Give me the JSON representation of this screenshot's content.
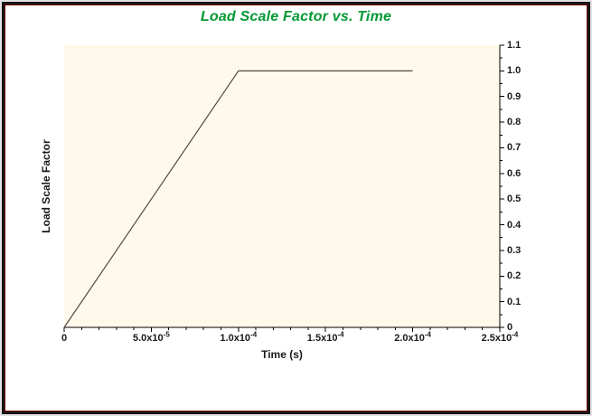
{
  "chart_data": {
    "type": "line",
    "title": "Load Scale Factor vs. Time",
    "xlabel": "Time (s)",
    "ylabel": "Load Scale Factor",
    "xlim": [
      0,
      0.00025
    ],
    "ylim": [
      0,
      1.1
    ],
    "grid": false,
    "legend": "none",
    "axis_sides": {
      "x": "bottom",
      "y": "right"
    },
    "series": [
      {
        "name": "Load Scale Factor",
        "points": [
          [
            0,
            0
          ],
          [
            0.0001,
            1.0
          ],
          [
            0.0002,
            1.0
          ]
        ]
      }
    ],
    "x_major_ticks": [
      {
        "value": 0,
        "label": "0",
        "exp": ""
      },
      {
        "value": 5e-05,
        "label": "5.0x10",
        "exp": "-5"
      },
      {
        "value": 0.0001,
        "label": "1.0x10",
        "exp": "-4"
      },
      {
        "value": 0.00015,
        "label": "1.5x10",
        "exp": "-4"
      },
      {
        "value": 0.0002,
        "label": "2.0x10",
        "exp": "-4"
      },
      {
        "value": 0.00025,
        "label": "2.5x10",
        "exp": "-4"
      }
    ],
    "x_minor_step": 1e-05,
    "y_major_ticks": [
      {
        "value": 0,
        "label": "0"
      },
      {
        "value": 0.1,
        "label": "0.1"
      },
      {
        "value": 0.2,
        "label": "0.2"
      },
      {
        "value": 0.3,
        "label": "0.3"
      },
      {
        "value": 0.4,
        "label": "0.4"
      },
      {
        "value": 0.5,
        "label": "0.5"
      },
      {
        "value": 0.6,
        "label": "0.6"
      },
      {
        "value": 0.7,
        "label": "0.7"
      },
      {
        "value": 0.8,
        "label": "0.8"
      },
      {
        "value": 0.9,
        "label": "0.9"
      },
      {
        "value": 1.0,
        "label": "1.0"
      },
      {
        "value": 1.1,
        "label": "1.1"
      }
    ],
    "y_minor_step": 0.05
  },
  "colors": {
    "title": "#009933",
    "plot_bg": "#FFF9EB",
    "line": "#4F4B45",
    "axis": "#000000",
    "tick_label": "#1A1A1A",
    "frame_black": "#151515",
    "frame_maroon": "#7D0C0C",
    "outer_edge": "#E3E3E3",
    "page_bg": "#FFFFFF"
  }
}
